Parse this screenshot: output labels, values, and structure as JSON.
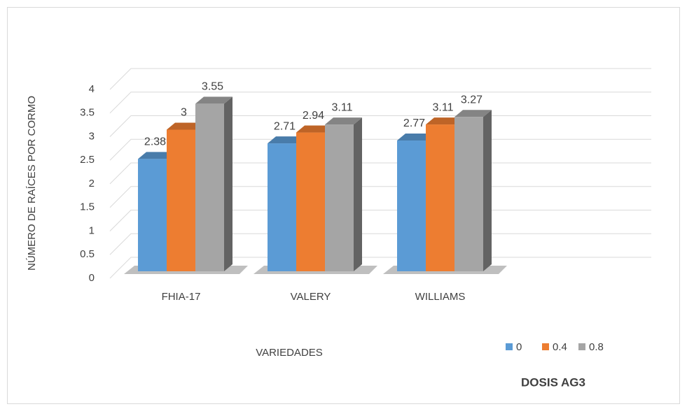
{
  "chart_data": {
    "type": "bar3d",
    "categories": [
      "FHIA-17",
      "VALERY",
      "WILLIAMS"
    ],
    "series": [
      {
        "name": "0",
        "color": "#5b9bd5",
        "values": [
          2.38,
          2.71,
          2.77
        ]
      },
      {
        "name": "0.4",
        "color": "#ed7d31",
        "values": [
          3,
          2.94,
          3.11
        ]
      },
      {
        "name": "0.8",
        "color": "#a5a5a5",
        "values": [
          3.55,
          3.11,
          3.27
        ]
      }
    ],
    "ylim": [
      0,
      4
    ],
    "yticks": [
      0,
      0.5,
      1,
      1.5,
      2,
      2.5,
      3,
      3.5,
      4
    ],
    "y_label": "NÚMERO DE RAÍCES POR CORMO",
    "x_label": "VARIEDADES",
    "legend_title": "DOSIS AG3",
    "grid": true
  }
}
